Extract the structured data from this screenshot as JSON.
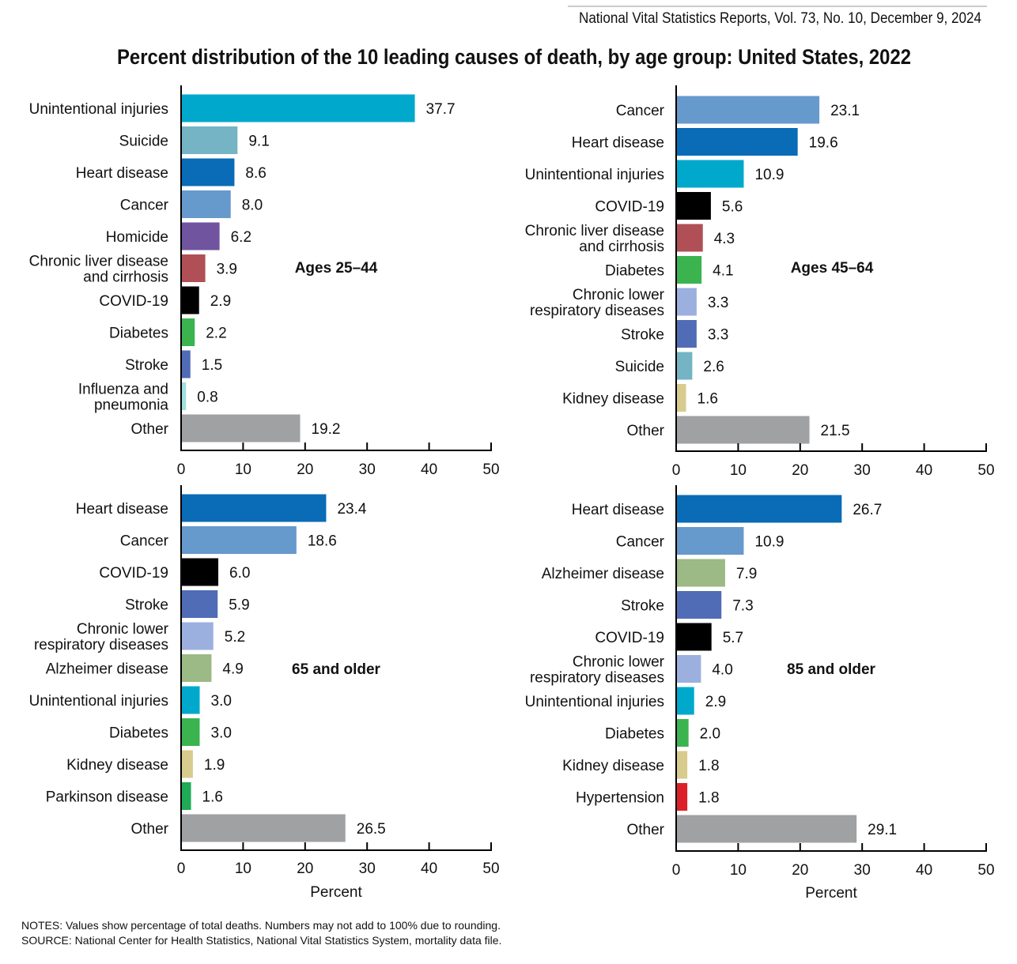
{
  "header": "National Vital Statistics Reports, Vol. 73, No. 10, December 9, 2024",
  "title": "Percent distribution of the 10 leading causes of death, by age group: United States, 2022",
  "notes": "NOTES: Values show percentage of total deaths. Numbers may not add to 100% due to rounding.",
  "source": "SOURCE: National Center for Health Statistics, National Vital Statistics System, mortality data file.",
  "colors": {
    "Unintentional injuries": "#00a8cc",
    "Suicide": "#74b4c4",
    "Heart disease": "#0a6bb6",
    "Cancer": "#6699cc",
    "Homicide": "#7054a0",
    "Chronic liver disease and cirrhosis": "#b04f55",
    "COVID-19": "#000000",
    "Diabetes": "#3bb44f",
    "Stroke": "#506cb6",
    "Influenza and pneumonia": "#a3dede",
    "Other": "#a0a1a3",
    "Chronic lower respiratory diseases": "#9bb0de",
    "Kidney disease": "#d8cb8e",
    "Alzheimer disease": "#9bba85",
    "Parkinson disease": "#1faa57",
    "Hypertension": "#db2127"
  },
  "chart_data": [
    {
      "type": "bar",
      "title": "Ages 25–44",
      "xlabel": "",
      "xlim": [
        0,
        50
      ],
      "xticks": [
        "0",
        "10",
        "20",
        "30",
        "40",
        "50"
      ],
      "categories": [
        "Unintentional injuries",
        "Suicide",
        "Heart disease",
        "Cancer",
        "Homicide",
        "Chronic liver disease\nand cirrhosis",
        "COVID-19",
        "Diabetes",
        "Stroke",
        "Influenza and\npneumonia",
        "Other"
      ],
      "keys": [
        "Unintentional injuries",
        "Suicide",
        "Heart disease",
        "Cancer",
        "Homicide",
        "Chronic liver disease and cirrhosis",
        "COVID-19",
        "Diabetes",
        "Stroke",
        "Influenza and pneumonia",
        "Other"
      ],
      "values": [
        37.7,
        9.1,
        8.6,
        8.0,
        6.2,
        3.9,
        2.9,
        2.2,
        1.5,
        0.8,
        19.2
      ],
      "labels": [
        "37.7",
        "9.1",
        "8.6",
        "8.0",
        "6.2",
        "3.9",
        "2.9",
        "2.2",
        "1.5",
        "0.8",
        "19.2"
      ]
    },
    {
      "type": "bar",
      "title": "Ages 45–64",
      "xlabel": "",
      "xlim": [
        0,
        50
      ],
      "xticks": [
        "0",
        "10",
        "20",
        "30",
        "40",
        "50"
      ],
      "categories": [
        "Cancer",
        "Heart disease",
        "Unintentional injuries",
        "COVID-19",
        "Chronic liver disease\nand cirrhosis",
        "Diabetes",
        "Chronic lower\nrespiratory diseases",
        "Stroke",
        "Suicide",
        "Kidney disease",
        "Other"
      ],
      "keys": [
        "Cancer",
        "Heart disease",
        "Unintentional injuries",
        "COVID-19",
        "Chronic liver disease and cirrhosis",
        "Diabetes",
        "Chronic lower respiratory diseases",
        "Stroke",
        "Suicide",
        "Kidney disease",
        "Other"
      ],
      "values": [
        23.1,
        19.6,
        10.9,
        5.6,
        4.3,
        4.1,
        3.3,
        3.3,
        2.6,
        1.6,
        21.5
      ],
      "labels": [
        "23.1",
        "19.6",
        "10.9",
        "5.6",
        "4.3",
        "4.1",
        "3.3",
        "3.3",
        "2.6",
        "1.6",
        "21.5"
      ]
    },
    {
      "type": "bar",
      "title": "65 and older",
      "xlabel": "Percent",
      "xlim": [
        0,
        50
      ],
      "xticks": [
        "0",
        "10",
        "20",
        "30",
        "40",
        "50"
      ],
      "categories": [
        "Heart disease",
        "Cancer",
        "COVID-19",
        "Stroke",
        "Chronic lower\nrespiratory diseases",
        "Alzheimer disease",
        "Unintentional injuries",
        "Diabetes",
        "Kidney disease",
        "Parkinson disease",
        "Other"
      ],
      "keys": [
        "Heart disease",
        "Cancer",
        "COVID-19",
        "Stroke",
        "Chronic lower respiratory diseases",
        "Alzheimer disease",
        "Unintentional injuries",
        "Diabetes",
        "Kidney disease",
        "Parkinson disease",
        "Other"
      ],
      "values": [
        23.4,
        18.6,
        6.0,
        5.9,
        5.2,
        4.9,
        3.0,
        3.0,
        1.9,
        1.6,
        26.5
      ],
      "labels": [
        "23.4",
        "18.6",
        "6.0",
        "5.9",
        "5.2",
        "4.9",
        "3.0",
        "3.0",
        "1.9",
        "1.6",
        "26.5"
      ]
    },
    {
      "type": "bar",
      "title": "85 and older",
      "xlabel": "Percent",
      "xlim": [
        0,
        50
      ],
      "xticks": [
        "0",
        "10",
        "20",
        "30",
        "40",
        "50"
      ],
      "categories": [
        "Heart disease",
        "Cancer",
        "Alzheimer disease",
        "Stroke",
        "COVID-19",
        "Chronic lower\nrespiratory diseases",
        "Unintentional injuries",
        "Diabetes",
        "Kidney disease",
        "Hypertension",
        "Other"
      ],
      "keys": [
        "Heart disease",
        "Cancer",
        "Alzheimer disease",
        "Stroke",
        "COVID-19",
        "Chronic lower respiratory diseases",
        "Unintentional injuries",
        "Diabetes",
        "Kidney disease",
        "Hypertension",
        "Other"
      ],
      "values": [
        26.7,
        10.9,
        7.9,
        7.3,
        5.7,
        4.0,
        2.9,
        2.0,
        1.8,
        1.8,
        29.1
      ],
      "labels": [
        "26.7",
        "10.9",
        "7.9",
        "7.3",
        "5.7",
        "4.0",
        "2.9",
        "2.0",
        "1.8",
        "1.8",
        "29.1"
      ]
    }
  ]
}
